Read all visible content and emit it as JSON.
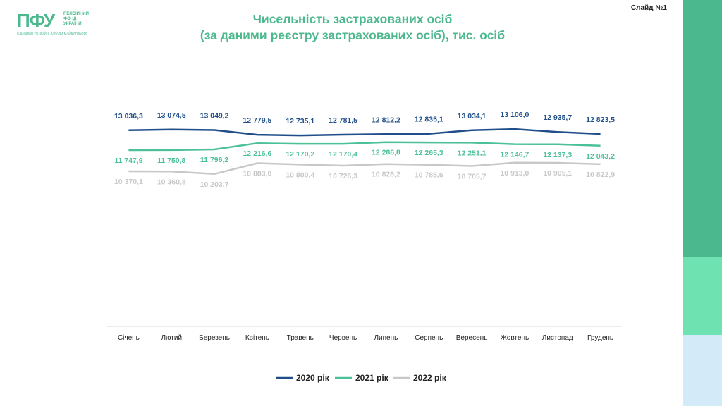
{
  "logo": {
    "mark": "ПФУ",
    "text": "ПЕНСІЙНИЙ\nФОНД\nУКРАЇНИ",
    "subtitle": "ЄДИНИМО ПЕНСІЙНІ ЗАРАДИ МАЙБУТНЬОГО"
  },
  "slide_label": "Слайд №1",
  "title_line1": "Чисельність застрахованих осіб",
  "title_line2": "(за даними реєстру застрахованих осіб), тис. осіб",
  "colors": {
    "accent": "#4cb88e",
    "series_2020": "#1f4e8a",
    "series_2021": "#4cc197",
    "series_2022": "#c8c8c8",
    "band_top": "#4cb88e",
    "band_mid": "#6fe2b1",
    "band_bottom": "#d3ebf8"
  },
  "chart_data": {
    "type": "line",
    "title": "Чисельність застрахованих осіб (за даними реєстру застрахованих осіб), тис. осіб",
    "categories": [
      "Січень",
      "Лютий",
      "Березень",
      "Квітень",
      "Травень",
      "Червень",
      "Липень",
      "Серпень",
      "Вересень",
      "Жовтень",
      "Листопад",
      "Грудень"
    ],
    "series": [
      {
        "name": "2020 рік",
        "values": [
          13036.3,
          13074.5,
          13049.2,
          12779.5,
          12735.1,
          12781.5,
          12812.2,
          12835.1,
          13034.1,
          13106.0,
          12935.7,
          12823.5
        ],
        "labels": [
          "13 036,3",
          "13 074,5",
          "13 049,2",
          "12 779,5",
          "12 735,1",
          "12 781,5",
          "12 812,2",
          "12 835,1",
          "13 034,1",
          "13 106,0",
          "12 935,7",
          "12 823,5"
        ]
      },
      {
        "name": "2021 рік",
        "values": [
          11747.9,
          11750.8,
          11796.2,
          12216.6,
          12170.2,
          12170.4,
          12286.8,
          12265.3,
          12251.1,
          12146.7,
          12137.3,
          12043.2
        ],
        "labels": [
          "11 747,9",
          "11 750,8",
          "11 796,2",
          "12 216,6",
          "12 170,2",
          "12 170,4",
          "12 286,8",
          "12 265,3",
          "12 251,1",
          "12 146,7",
          "12 137,3",
          "12 043,2"
        ]
      },
      {
        "name": "2022 рік",
        "values": [
          10370.1,
          10360.8,
          10203.7,
          10883.0,
          10800.4,
          10726.3,
          10828.2,
          10785.6,
          10705.7,
          10913.0,
          10905.1,
          10822.9
        ],
        "labels": [
          "10 370,1",
          "10 360,8",
          "10 203,7",
          "10 883,0",
          "10 800,4",
          "10 726,3",
          "10 828,2",
          "10 785,6",
          "10 705,7",
          "10 913,0",
          "10 905,1",
          "10 822,9"
        ]
      }
    ],
    "legend_position": "bottom",
    "grid": false
  }
}
